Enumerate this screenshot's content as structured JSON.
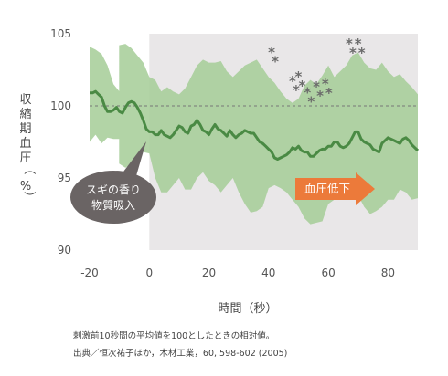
{
  "chart_data": {
    "type": "line",
    "ylabel": "収縮期血圧（%）",
    "xlabel": "時間（秒）",
    "xlim": [
      -20,
      90
    ],
    "ylim": [
      90,
      105
    ],
    "xticks": [
      -20,
      0,
      20,
      40,
      60,
      80
    ],
    "yticks": [
      90,
      95,
      100,
      105
    ],
    "baseline": 100,
    "stimulus_period": [
      0,
      90
    ],
    "colors": {
      "mean_line": "#4a8a44",
      "band": "#a5cd97",
      "stimulus_bg": "#e9e7e8",
      "annotation_bubble": "#6a6464",
      "arrow": "#ec7a3a",
      "significance": "#6b6b6b"
    },
    "series": [
      {
        "x": [
          -20,
          -19,
          -18,
          -17,
          -16,
          -15,
          -14,
          -13,
          -12,
          -11,
          -10,
          -9,
          -8,
          -7,
          -6,
          -5,
          -4,
          -3,
          -2,
          -1,
          0,
          1,
          2,
          3,
          4,
          5,
          6,
          7,
          8,
          9,
          10,
          11,
          12,
          13,
          14,
          15,
          16,
          17,
          18,
          19,
          20,
          21,
          22,
          23,
          24,
          25,
          26,
          27,
          28,
          29,
          30,
          31,
          32,
          33,
          34,
          35,
          36,
          37,
          38,
          39,
          40,
          41,
          42,
          43,
          44,
          45,
          46,
          47,
          48,
          49,
          50,
          51,
          52,
          53,
          54,
          55,
          56,
          57,
          58,
          59,
          60,
          61,
          62,
          63,
          64,
          65,
          66,
          67,
          68,
          69,
          70,
          71,
          72,
          73,
          74,
          75,
          76,
          77,
          78,
          79,
          80,
          81,
          82,
          83,
          84,
          85,
          86,
          87,
          88,
          89,
          90
        ],
        "values": [
          100.9,
          100.9,
          101.0,
          100.8,
          100.6,
          100.0,
          99.6,
          99.6,
          99.7,
          99.9,
          99.6,
          99.5,
          99.9,
          100.2,
          100.3,
          100.2,
          99.9,
          99.5,
          99.0,
          98.4,
          98.2,
          98.2,
          98.0,
          98.0,
          98.3,
          98.0,
          97.9,
          97.8,
          98.0,
          98.3,
          98.6,
          98.5,
          98.2,
          98.1,
          98.6,
          98.7,
          99.0,
          98.7,
          98.3,
          98.2,
          98.0,
          98.4,
          98.7,
          98.4,
          98.3,
          98.1,
          97.9,
          98.3,
          98.0,
          97.8,
          98.0,
          98.1,
          98.3,
          98.2,
          98.1,
          98.1,
          97.8,
          97.5,
          97.4,
          97.2,
          97.0,
          96.8,
          96.4,
          96.3,
          96.4,
          96.5,
          96.6,
          96.8,
          97.1,
          97.0,
          97.2,
          96.9,
          96.8,
          96.8,
          96.5,
          96.5,
          96.7,
          96.9,
          97.0,
          97.0,
          97.2,
          97.2,
          97.5,
          97.5,
          97.2,
          97.1,
          97.2,
          97.4,
          97.8,
          98.2,
          98.2,
          97.7,
          97.5,
          97.4,
          97.3,
          97.0,
          96.9,
          96.8,
          97.4,
          97.6,
          97.8,
          97.7,
          97.6,
          97.5,
          97.4,
          97.7,
          97.8,
          97.6,
          97.3,
          97.1,
          96.9
        ]
      }
    ],
    "band": {
      "x": [
        -20,
        -18,
        -16,
        -14,
        -12,
        -10,
        -10.1,
        -8,
        -6,
        -4,
        -2,
        0,
        2,
        4,
        6,
        8,
        10,
        12,
        14,
        16,
        18,
        20,
        22,
        24,
        26,
        28,
        30,
        32,
        34,
        36,
        38,
        40,
        42,
        44,
        46,
        48,
        50,
        52,
        54,
        56,
        58,
        60,
        62,
        64,
        66,
        68,
        70,
        72,
        74,
        76,
        78,
        80,
        82,
        84,
        86,
        88,
        90
      ],
      "upper": [
        104.1,
        103.9,
        103.6,
        102.8,
        101.5,
        101.0,
        104.2,
        104.3,
        104.0,
        103.5,
        103.0,
        102.0,
        101.8,
        101.0,
        101.3,
        101.0,
        100.8,
        101.2,
        102.0,
        102.8,
        103.2,
        103.0,
        103.0,
        103.1,
        102.4,
        102.0,
        102.4,
        102.8,
        103.0,
        103.2,
        102.6,
        102.0,
        101.6,
        101.0,
        100.5,
        100.2,
        100.5,
        101.4,
        101.8,
        101.5,
        102.1,
        102.8,
        102.0,
        102.4,
        102.8,
        103.5,
        103.7,
        103.0,
        102.6,
        102.5,
        103.0,
        102.4,
        102.0,
        102.2,
        101.7,
        101.3,
        100.8
      ],
      "lower": [
        97.5,
        98.0,
        97.4,
        97.8,
        97.7,
        97.7,
        96.0,
        95.7,
        96.0,
        96.3,
        96.8,
        96.7,
        95.0,
        94.0,
        94.0,
        94.5,
        95.0,
        94.2,
        94.2,
        95.0,
        95.4,
        94.8,
        94.5,
        94.0,
        94.5,
        95.0,
        94.0,
        93.2,
        92.6,
        92.7,
        93.0,
        94.3,
        94.5,
        94.3,
        94.0,
        93.5,
        93.0,
        92.2,
        91.8,
        91.9,
        92.0,
        93.2,
        93.5,
        93.7,
        93.9,
        94.0,
        93.8,
        93.0,
        92.5,
        92.7,
        93.0,
        93.5,
        93.5,
        94.2,
        94.0,
        93.5,
        93.6
      ]
    },
    "significance_markers": [
      {
        "x": 41,
        "y": 103.4
      },
      {
        "x": 48,
        "y": 101.4
      },
      {
        "x": 50,
        "y": 101.7
      },
      {
        "x": 53,
        "y": 100.6
      },
      {
        "x": 56,
        "y": 101.0
      },
      {
        "x": 59,
        "y": 101.2
      },
      {
        "x": 67,
        "y": 104.0
      },
      {
        "x": 70,
        "y": 104.0
      }
    ],
    "annotations": {
      "bubble_lines": [
        "スギの香り",
        "物質吸入"
      ],
      "arrow_text": "血圧低下"
    }
  },
  "footnotes": [
    "刺激前10秒間の平均値を100としたときの相対値。",
    "出典／恒次祐子ほか，木材工業，60, 598-602 (2005)"
  ]
}
